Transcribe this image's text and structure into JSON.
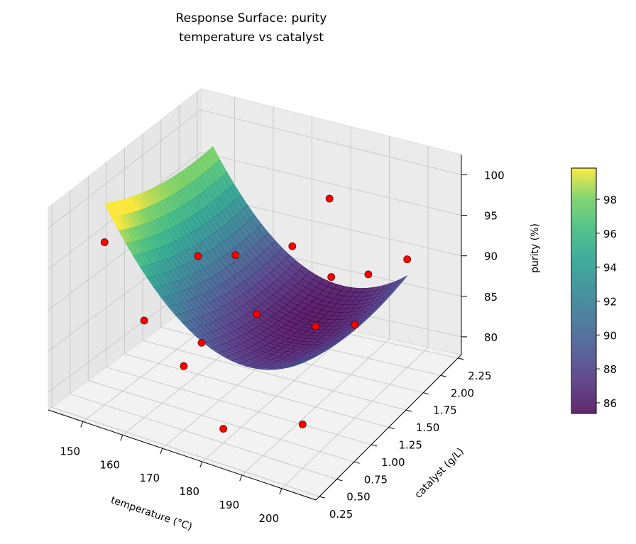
{
  "chart_data": {
    "type": "surface3d",
    "title": "Response Surface: purity",
    "subtitle": "temperature vs catalyst",
    "xlabel": "temperature (°C)",
    "ylabel": "catalyst (g/L)",
    "zlabel": "purity (%)",
    "xlim": [
      141.3,
      208.6
    ],
    "ylim": [
      0.2,
      2.3
    ],
    "zlim": [
      77.8,
      102.5
    ],
    "xticks": [
      "150",
      "160",
      "170",
      "180",
      "190",
      "200"
    ],
    "yticks": [
      "0.25",
      "0.50",
      "0.75",
      "1.00",
      "1.25",
      "1.50",
      "1.75",
      "2.00",
      "2.25"
    ],
    "zticks": [
      "80",
      "85",
      "90",
      "95",
      "100"
    ],
    "colormap": "viridis",
    "colorbar": {
      "range": [
        85.37,
        99.84
      ],
      "ticks": [
        "86",
        "88",
        "90",
        "92",
        "94",
        "96",
        "98"
      ]
    },
    "surface_range": {
      "x": [
        150,
        200
      ],
      "y": [
        0.5,
        2.0
      ]
    },
    "grid": true,
    "point_color": "#ff0000",
    "points": [
      {
        "x": 150,
        "y": 0.5,
        "z": 97.5
      },
      {
        "x": 160,
        "y": 0.5,
        "z": 89.5
      },
      {
        "x": 170,
        "y": 0.5,
        "z": 85.5
      },
      {
        "x": 170,
        "y": 0.75,
        "z": 86.5
      },
      {
        "x": 180,
        "y": 0.5,
        "z": 79.5
      },
      {
        "x": 200,
        "y": 0.5,
        "z": 83
      },
      {
        "x": 160,
        "y": 1.25,
        "z": 92
      },
      {
        "x": 165,
        "y": 1.5,
        "z": 91
      },
      {
        "x": 175,
        "y": 1.25,
        "z": 87
      },
      {
        "x": 185,
        "y": 1.75,
        "z": 89
      },
      {
        "x": 190,
        "y": 1.25,
        "z": 87.5
      },
      {
        "x": 200,
        "y": 1.25,
        "z": 89
      },
      {
        "x": 180,
        "y": 2.0,
        "z": 96
      },
      {
        "x": 200,
        "y": 2.0,
        "z": 91
      },
      {
        "x": 175,
        "y": 1.75,
        "z": 91.5
      },
      {
        "x": 190,
        "y": 2.0,
        "z": 88
      }
    ]
  }
}
